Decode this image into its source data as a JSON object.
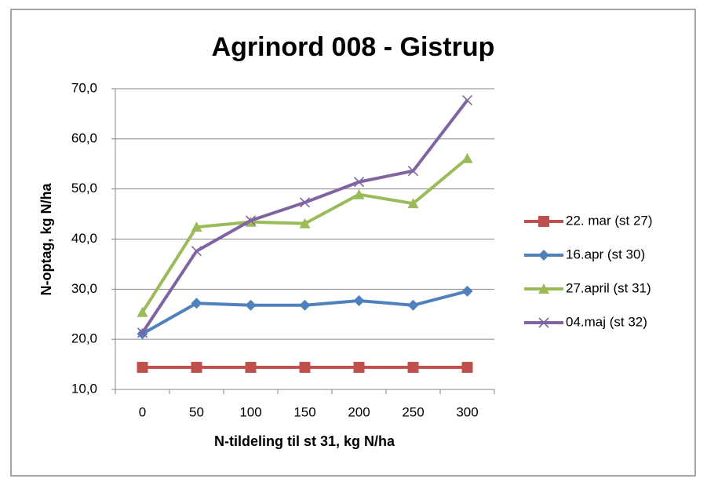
{
  "chart_data": {
    "type": "line",
    "title": "Agrinord 008 - Gistrup",
    "x_label": "N-tildeling til st 31, kg N/ha",
    "y_label": "N-optag, kg N/ha",
    "categories": [
      "0",
      "50",
      "100",
      "150",
      "200",
      "250",
      "300"
    ],
    "series": [
      {
        "name": "22. mar (st 27)",
        "color": "#c0504d",
        "marker": "square",
        "values": [
          14.4,
          14.4,
          14.4,
          14.4,
          14.4,
          14.4,
          14.4
        ]
      },
      {
        "name": "16.apr (st 30)",
        "color": "#4f81bd",
        "marker": "diamond",
        "values": [
          21.1,
          27.2,
          26.8,
          26.8,
          27.7,
          26.8,
          29.6
        ]
      },
      {
        "name": "27.april (st 31)",
        "color": "#9bbb59",
        "marker": "triangle",
        "values": [
          25.4,
          42.4,
          43.4,
          43.1,
          48.9,
          47.1,
          56.1
        ]
      },
      {
        "name": "04.maj (st 32)",
        "color": "#8064a2",
        "marker": "x",
        "values": [
          21.3,
          37.6,
          43.7,
          47.3,
          51.4,
          53.6,
          67.7
        ]
      }
    ],
    "ylim": [
      10,
      70
    ],
    "yticks": [
      {
        "value": 10,
        "label": "10,0"
      },
      {
        "value": 20,
        "label": "20,0"
      },
      {
        "value": 30,
        "label": "30,0"
      },
      {
        "value": 40,
        "label": "40,0"
      },
      {
        "value": 50,
        "label": "50,0"
      },
      {
        "value": 60,
        "label": "60,0"
      },
      {
        "value": 70,
        "label": "70,0"
      }
    ],
    "grid": true,
    "legend": "right"
  }
}
